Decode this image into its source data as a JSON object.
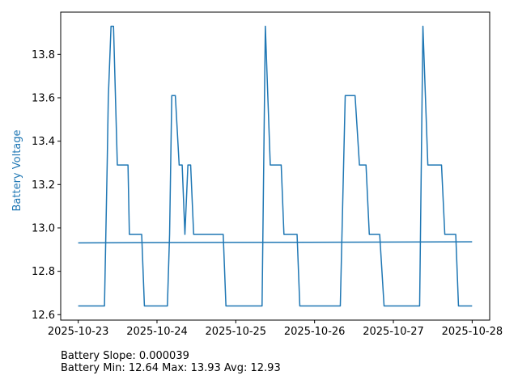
{
  "chart_data": {
    "type": "line",
    "title": "",
    "xlabel": "",
    "ylabel": "Battery Voltage",
    "ylabel_color": "#1f77b4",
    "line_color": "#1f77b4",
    "grid": false,
    "xlim": [
      "2025-10-22T18:40",
      "2025-10-28T05:20"
    ],
    "ylim": [
      12.575,
      13.995
    ],
    "x_ticks": [
      "2025-10-23",
      "2025-10-24",
      "2025-10-25",
      "2025-10-26",
      "2025-10-27",
      "2025-10-28"
    ],
    "y_ticks": [
      12.6,
      12.8,
      13.0,
      13.2,
      13.4,
      13.6,
      13.8
    ],
    "series": [
      {
        "values": [
          [
            "2025-10-23T00:00",
            12.64
          ],
          [
            "2025-10-23T08:00",
            12.64
          ],
          [
            "2025-10-23T08:50",
            13.3
          ],
          [
            "2025-10-23T09:10",
            13.6
          ],
          [
            "2025-10-23T10:00",
            13.93
          ],
          [
            "2025-10-23T10:45",
            13.93
          ],
          [
            "2025-10-23T11:55",
            13.29
          ],
          [
            "2025-10-23T15:10",
            13.29
          ],
          [
            "2025-10-23T15:35",
            12.97
          ],
          [
            "2025-10-23T19:20",
            12.97
          ],
          [
            "2025-10-23T20:10",
            12.64
          ],
          [
            "2025-10-24T03:10",
            12.64
          ],
          [
            "2025-10-24T03:50",
            12.97
          ],
          [
            "2025-10-24T04:30",
            13.61
          ],
          [
            "2025-10-24T05:35",
            13.61
          ],
          [
            "2025-10-24T06:45",
            13.29
          ],
          [
            "2025-10-24T07:40",
            13.29
          ],
          [
            "2025-10-24T08:30",
            12.97
          ],
          [
            "2025-10-24T09:25",
            13.29
          ],
          [
            "2025-10-24T10:15",
            13.29
          ],
          [
            "2025-10-24T11:10",
            12.97
          ],
          [
            "2025-10-24T20:10",
            12.97
          ],
          [
            "2025-10-24T21:00",
            12.64
          ],
          [
            "2025-10-25T08:00",
            12.64
          ],
          [
            "2025-10-25T09:00",
            13.93
          ],
          [
            "2025-10-25T10:30",
            13.29
          ],
          [
            "2025-10-25T13:50",
            13.29
          ],
          [
            "2025-10-25T14:40",
            12.97
          ],
          [
            "2025-10-25T18:40",
            12.97
          ],
          [
            "2025-10-25T19:30",
            12.64
          ],
          [
            "2025-10-26T07:50",
            12.64
          ],
          [
            "2025-10-26T09:20",
            13.61
          ],
          [
            "2025-10-26T12:20",
            13.61
          ],
          [
            "2025-10-26T13:40",
            13.29
          ],
          [
            "2025-10-26T15:40",
            13.29
          ],
          [
            "2025-10-26T16:40",
            12.97
          ],
          [
            "2025-10-26T19:50",
            12.97
          ],
          [
            "2025-10-26T21:10",
            12.64
          ],
          [
            "2025-10-27T08:00",
            12.64
          ],
          [
            "2025-10-27T09:00",
            13.93
          ],
          [
            "2025-10-27T10:30",
            13.29
          ],
          [
            "2025-10-27T14:40",
            13.29
          ],
          [
            "2025-10-27T15:40",
            12.97
          ],
          [
            "2025-10-27T19:00",
            12.97
          ],
          [
            "2025-10-27T19:50",
            12.64
          ],
          [
            "2025-10-27T23:59",
            12.64
          ]
        ]
      },
      {
        "values": [
          [
            "2025-10-23T00:00",
            12.931
          ],
          [
            "2025-10-27T23:59",
            12.936
          ]
        ]
      }
    ]
  },
  "stats": {
    "slope_line": "Battery Slope: 0.000039",
    "minmax_line": "Battery Min: 12.64 Max: 13.93 Avg: 12.93"
  }
}
